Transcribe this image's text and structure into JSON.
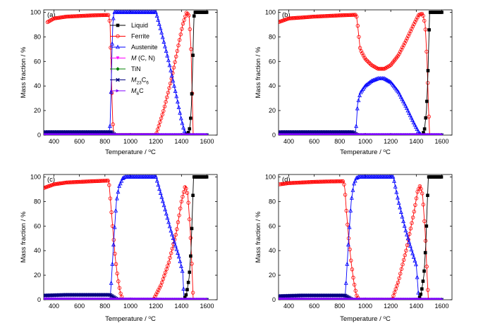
{
  "colors": {
    "liquid": "#000000",
    "ferrite": "#ff0000",
    "austenite": "#0000ff",
    "mcn": "#ff00ff",
    "tin": "#008000",
    "m23c6": "#000080",
    "m6c": "#8000ff"
  },
  "legend": [
    {
      "key": "liquid",
      "label": "Liquid",
      "marker": "square-filled"
    },
    {
      "key": "ferrite",
      "label": "Ferrite",
      "marker": "circle-open"
    },
    {
      "key": "austenite",
      "label": "Austenite",
      "marker": "triangle-open"
    },
    {
      "key": "mcn",
      "label": "M (C, N)",
      "marker": "triangle-down-filled"
    },
    {
      "key": "tin",
      "label": "TiN",
      "marker": "diamond-filled"
    },
    {
      "key": "m23c6",
      "label": "M23C6",
      "marker": "cross"
    },
    {
      "key": "m6c",
      "label": "M6C",
      "marker": "triangle-right-filled"
    }
  ],
  "chart_data": [
    {
      "panel": "(a)",
      "type": "line",
      "xlabel": "Temperature / °C",
      "ylabel": "Mass fraction / %",
      "xlim": [
        320,
        1680
      ],
      "ylim": [
        0,
        102
      ],
      "xticks": [
        400,
        600,
        800,
        1000,
        1200,
        1400,
        1600
      ],
      "yticks": [
        0,
        20,
        40,
        60,
        80,
        100
      ],
      "series": [
        {
          "name": "Ferrite",
          "key": "ferrite",
          "x": [
            350,
            400,
            500,
            600,
            700,
            800,
            830,
            840,
            848,
            855,
            862,
            870,
            1200,
            1260,
            1320,
            1370,
            1410,
            1440,
            1460,
            1475,
            1485,
            1492
          ],
          "y": [
            92,
            95,
            96.5,
            97,
            97.5,
            97.8,
            97.8,
            90,
            60,
            30,
            10,
            0,
            0,
            20,
            45,
            70,
            90,
            100,
            97,
            70,
            30,
            0
          ]
        },
        {
          "name": "Austenite",
          "key": "austenite",
          "x": [
            830,
            840,
            848,
            855,
            862,
            870,
            880,
            1200,
            1240,
            1300,
            1360,
            1400,
            1420,
            1440
          ],
          "y": [
            0,
            8,
            35,
            68,
            90,
            100,
            100,
            100,
            85,
            60,
            32,
            12,
            4,
            0
          ]
        },
        {
          "name": "Liquid",
          "key": "liquid",
          "x": [
            1400,
            1440,
            1460,
            1470,
            1478,
            1485,
            1490,
            1495,
            1500,
            1600
          ],
          "y": [
            0,
            0,
            3,
            10,
            25,
            45,
            65,
            85,
            100,
            100
          ]
        },
        {
          "name": "M23C6",
          "key": "m23c6",
          "x": [
            330,
            500,
            700,
            850,
            880,
            1600
          ],
          "y": [
            2.5,
            2.5,
            2.5,
            2.5,
            0,
            0
          ]
        },
        {
          "name": "M6C",
          "key": "m6c",
          "x": [
            330,
            1600
          ],
          "y": [
            0.4,
            0.4
          ]
        }
      ]
    },
    {
      "panel": "(b)",
      "type": "line",
      "xlabel": "Temperature / °C",
      "ylabel": "Mass fraction / %",
      "xlim": [
        320,
        1680
      ],
      "ylim": [
        0,
        102
      ],
      "xticks": [
        400,
        600,
        800,
        1000,
        1200,
        1400,
        1600
      ],
      "yticks": [
        0,
        20,
        40,
        60,
        80,
        100
      ],
      "series": [
        {
          "name": "Ferrite",
          "key": "ferrite",
          "x": [
            320,
            400,
            600,
            800,
            930,
            940,
            960,
            1000,
            1050,
            1100,
            1150,
            1200,
            1260,
            1320,
            1380,
            1420,
            1450,
            1470,
            1485,
            1495,
            1505
          ],
          "y": [
            92,
            95,
            96.5,
            97.5,
            98,
            90,
            70,
            62,
            57,
            54,
            54,
            57,
            65,
            77,
            90,
            98,
            99,
            90,
            60,
            25,
            0
          ]
        },
        {
          "name": "Austenite",
          "key": "austenite",
          "x": [
            920,
            930,
            940,
            960,
            1000,
            1050,
            1100,
            1150,
            1200,
            1260,
            1320,
            1380,
            1420,
            1440
          ],
          "y": [
            0,
            8,
            25,
            34,
            40,
            44,
            46,
            46,
            43,
            35,
            23,
            10,
            2,
            0
          ]
        },
        {
          "name": "Liquid",
          "key": "liquid",
          "x": [
            1420,
            1450,
            1465,
            1480,
            1490,
            1498,
            1505,
            1600
          ],
          "y": [
            0,
            0,
            5,
            20,
            45,
            75,
            100,
            100
          ]
        },
        {
          "name": "M23C6",
          "key": "m23c6",
          "x": [
            330,
            600,
            900,
            940,
            1600
          ],
          "y": [
            2.5,
            2.5,
            2.5,
            0,
            0
          ]
        },
        {
          "name": "M6C",
          "key": "m6c",
          "x": [
            330,
            1600
          ],
          "y": [
            0.4,
            0.4
          ]
        }
      ]
    },
    {
      "panel": "(c)",
      "type": "line",
      "xlabel": "Temperature / °C",
      "ylabel": "Mass fraction / %",
      "xlim": [
        320,
        1680
      ],
      "ylim": [
        0,
        102
      ],
      "xticks": [
        400,
        600,
        800,
        1000,
        1200,
        1400,
        1600
      ],
      "yticks": [
        0,
        20,
        40,
        60,
        80,
        100
      ],
      "series": [
        {
          "name": "Ferrite",
          "key": "ferrite",
          "x": [
            320,
            400,
            500,
            600,
            700,
            820,
            830,
            840,
            860,
            880,
            900,
            920,
            940,
            1180,
            1240,
            1300,
            1360,
            1400,
            1430,
            1450,
            1470,
            1485,
            1492
          ],
          "y": [
            91,
            94,
            95.5,
            96,
            96.5,
            97,
            97,
            85,
            60,
            35,
            18,
            6,
            0,
            0,
            12,
            30,
            55,
            80,
            93,
            85,
            55,
            20,
            0
          ]
        },
        {
          "name": "Austenite",
          "key": "austenite",
          "x": [
            840,
            850,
            870,
            890,
            910,
            940,
            960,
            1200,
            1260,
            1320,
            1380,
            1410,
            1420
          ],
          "y": [
            0,
            15,
            50,
            80,
            92,
            99,
            100,
            100,
            78,
            55,
            35,
            22,
            0
          ]
        },
        {
          "name": "Liquid",
          "key": "liquid",
          "x": [
            1400,
            1420,
            1440,
            1460,
            1475,
            1485,
            1495,
            1600
          ],
          "y": [
            0,
            0,
            5,
            18,
            40,
            70,
            100,
            100
          ]
        },
        {
          "name": "M23C6",
          "key": "m23c6",
          "x": [
            330,
            500,
            700,
            840,
            900,
            1600
          ],
          "y": [
            3.5,
            4,
            4,
            4,
            0,
            0
          ]
        },
        {
          "name": "M6C",
          "key": "m6c",
          "x": [
            330,
            1600
          ],
          "y": [
            0.8,
            0.4
          ]
        }
      ]
    },
    {
      "panel": "(d)",
      "type": "line",
      "xlabel": "Temperature / °C",
      "ylabel": "Mass fraction / %",
      "xlim": [
        320,
        1680
      ],
      "ylim": [
        0,
        102
      ],
      "xticks": [
        400,
        600,
        800,
        1000,
        1200,
        1400,
        1600
      ],
      "yticks": [
        0,
        20,
        40,
        60,
        80,
        100
      ],
      "series": [
        {
          "name": "Ferrite",
          "key": "ferrite",
          "x": [
            330,
            400,
            500,
            600,
            700,
            830,
            840,
            850,
            870,
            890,
            910,
            930,
            950,
            1210,
            1260,
            1320,
            1380,
            1410,
            1430,
            1450,
            1470,
            1485,
            1495
          ],
          "y": [
            94,
            95,
            95.5,
            96,
            96.3,
            96.5,
            90,
            75,
            50,
            30,
            15,
            4,
            0,
            0,
            15,
            40,
            70,
            88,
            93,
            85,
            55,
            20,
            0
          ]
        },
        {
          "name": "Austenite",
          "key": "austenite",
          "x": [
            840,
            850,
            870,
            890,
            910,
            930,
            950,
            1220,
            1260,
            1320,
            1370,
            1400,
            1420
          ],
          "y": [
            0,
            15,
            50,
            80,
            94,
            99,
            100,
            100,
            80,
            55,
            38,
            28,
            0
          ]
        },
        {
          "name": "Liquid",
          "key": "liquid",
          "x": [
            1390,
            1420,
            1440,
            1460,
            1475,
            1485,
            1495,
            1600
          ],
          "y": [
            0,
            0,
            6,
            20,
            45,
            75,
            100,
            100
          ]
        },
        {
          "name": "M23C6",
          "key": "m23c6",
          "x": [
            330,
            500,
            700,
            840,
            900,
            1600
          ],
          "y": [
            3,
            3.5,
            3.5,
            3.5,
            0,
            0
          ]
        },
        {
          "name": "M6C",
          "key": "m6c",
          "x": [
            330,
            1600
          ],
          "y": [
            0.7,
            0.4
          ]
        }
      ]
    }
  ]
}
